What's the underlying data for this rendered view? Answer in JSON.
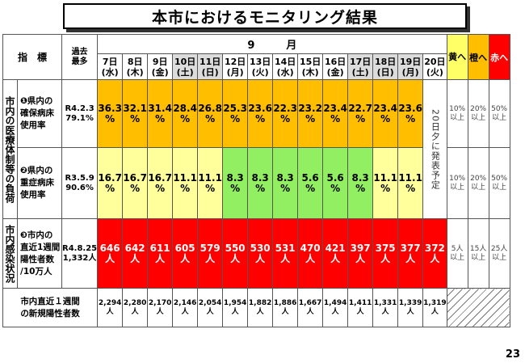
{
  "title": "本市におけるモニタリング結果",
  "header": {
    "indicator_label": "指　標",
    "past_max_label": "過去\n最多",
    "month_label": "9　　　月",
    "days": [
      {
        "d": "7日",
        "w": "(水)"
      },
      {
        "d": "8日",
        "w": "(木)"
      },
      {
        "d": "9日",
        "w": "(金)"
      },
      {
        "d": "10日",
        "w": "(土)"
      },
      {
        "d": "11日",
        "w": "(日)"
      },
      {
        "d": "12日",
        "w": "(月)"
      },
      {
        "d": "13日",
        "w": "(火)"
      },
      {
        "d": "14日",
        "w": "(水)"
      },
      {
        "d": "15日",
        "w": "(木)"
      },
      {
        "d": "16日",
        "w": "(金)"
      },
      {
        "d": "17日",
        "w": "(土)"
      },
      {
        "d": "18日",
        "w": "(日)"
      },
      {
        "d": "19日",
        "w": "(月)"
      },
      {
        "d": "20日",
        "w": "(火)"
      }
    ],
    "thresholds": [
      "黄へ",
      "橙へ",
      "赤へ"
    ]
  },
  "groups": {
    "medical": "市内の医療体制等の負荷",
    "infection": "市内感染状況"
  },
  "rows": [
    {
      "name": "❶県内の\n確保病床\n使用率",
      "past": "R4.2.3\n79.1%",
      "values": [
        "36.3\n%",
        "32.1\n%",
        "31.4\n%",
        "28.4\n%",
        "26.8\n%",
        "25.3\n%",
        "23.6\n%",
        "22.3\n%",
        "23.2\n%",
        "23.4\n%",
        "22.7\n%",
        "23.4\n%",
        "23.6\n%"
      ],
      "levels": [
        "orange",
        "orange",
        "orange",
        "orange",
        "orange",
        "orange",
        "orange",
        "orange",
        "orange",
        "orange",
        "orange",
        "orange",
        "orange"
      ],
      "thresholds": [
        "10%\n以上",
        "20%\n以上",
        "50%\n以上"
      ]
    },
    {
      "name": "❷県内の\n重症病床\n使用率",
      "past": "R3.5.9\n90.6%",
      "values": [
        "16.7\n%",
        "16.7\n%",
        "16.7\n%",
        "11.1\n%",
        "11.1\n%",
        "8.3\n%",
        "8.3\n%",
        "8.3\n%",
        "5.6\n%",
        "5.6\n%",
        "8.3\n%",
        "11.1\n%",
        "11.1\n%"
      ],
      "levels": [
        "yellow",
        "yellow",
        "yellow",
        "yellow",
        "yellow",
        "green",
        "green",
        "green",
        "green",
        "green",
        "green",
        "yellow",
        "yellow"
      ],
      "thresholds": [
        "10%\n以上",
        "20%\n以上",
        "50%\n以上"
      ]
    },
    {
      "name": "❸市内の\n直近1週間\n陽性者数\n/10万人",
      "past": "R4.8.25\n1,332人",
      "values": [
        "646\n人",
        "642\n人",
        "611\n人",
        "605\n人",
        "579\n人",
        "550\n人",
        "530\n人",
        "531\n人",
        "470\n人",
        "421\n人",
        "397\n人",
        "375\n人",
        "377\n人",
        "372\n人"
      ],
      "levels": [
        "red",
        "red",
        "red",
        "red",
        "red",
        "red",
        "red",
        "red",
        "red",
        "red",
        "red",
        "red",
        "red",
        "red"
      ],
      "thresholds": [
        "5人\n以上",
        "15人\n以上",
        "25人\n以上"
      ]
    }
  ],
  "pending_note": "20日夕に発表予定",
  "weekly": {
    "label": "市内直近１週間\nの新規陽性者数",
    "values": [
      "2,294\n人",
      "2,280\n人",
      "2,170\n人",
      "2,146\n人",
      "2,054\n人",
      "1,954\n人",
      "1,882\n人",
      "1,886\n人",
      "1,667\n人",
      "1,494\n人",
      "1,411\n人",
      "1,331\n人",
      "1,339\n人",
      "1,319\n人"
    ]
  },
  "page_number": "23",
  "colors": {
    "orange": "#ffbe00",
    "yellow_threshold": "#ffff66",
    "red": "#ff0000",
    "green": "#92ef61",
    "light_yellow": "#ffff9c"
  }
}
